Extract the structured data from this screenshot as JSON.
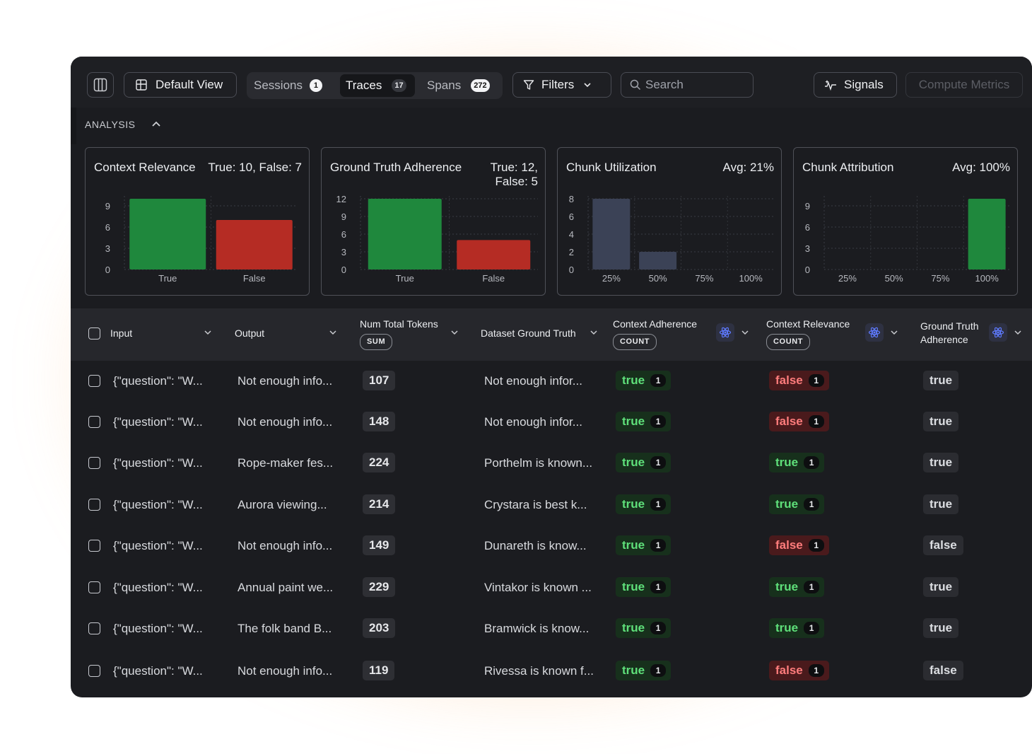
{
  "toolbar": {
    "default_view": "Default View",
    "tabs": [
      {
        "label": "Sessions",
        "count": "1"
      },
      {
        "label": "Traces",
        "count": "17"
      },
      {
        "label": "Spans",
        "count": "272"
      }
    ],
    "filters": "Filters",
    "search_placeholder": "Search",
    "signals": "Signals",
    "compute_metrics": "Compute Metrics"
  },
  "analysis": {
    "title": "ANALYSIS",
    "cards": [
      {
        "title": "Context Relevance",
        "stat_line1": "True: 10, False: 7",
        "stat_line2": "",
        "chart_data": {
          "type": "bar",
          "categories": [
            "True",
            "False"
          ],
          "values": [
            10,
            7
          ],
          "yticks": [
            0,
            3,
            6,
            9
          ],
          "ylim": [
            0,
            10
          ],
          "colors": [
            "#1f883d",
            "#b52c24"
          ]
        }
      },
      {
        "title": "Ground Truth Adherence",
        "stat_line1": "True: 12,",
        "stat_line2": "False: 5",
        "chart_data": {
          "type": "bar",
          "categories": [
            "True",
            "False"
          ],
          "values": [
            12,
            5
          ],
          "yticks": [
            0,
            3,
            6,
            9,
            12
          ],
          "ylim": [
            0,
            12
          ],
          "colors": [
            "#1f883d",
            "#b52c24"
          ]
        }
      },
      {
        "title": "Chunk Utilization",
        "stat_line1": "Avg: 21%",
        "stat_line2": "",
        "chart_data": {
          "type": "bar",
          "categories": [
            "25%",
            "50%",
            "75%",
            "100%"
          ],
          "values": [
            8,
            2,
            0,
            0
          ],
          "yticks": [
            0,
            2,
            4,
            6,
            8
          ],
          "ylim": [
            0,
            8
          ],
          "colors": [
            "#3b4256",
            "#3b4256",
            "#3b4256",
            "#3b4256"
          ]
        }
      },
      {
        "title": "Chunk Attribution",
        "stat_line1": "Avg: 100%",
        "stat_line2": "",
        "chart_data": {
          "type": "bar",
          "categories": [
            "25%",
            "50%",
            "75%",
            "100%"
          ],
          "values": [
            0,
            0,
            0,
            10
          ],
          "yticks": [
            0,
            3,
            6,
            9
          ],
          "ylim": [
            0,
            10
          ],
          "colors": [
            "#1f883d",
            "#1f883d",
            "#1f883d",
            "#1f883d"
          ]
        }
      }
    ]
  },
  "table": {
    "headers": {
      "input": "Input",
      "output": "Output",
      "tokens": "Num Total Tokens",
      "tokens_tag": "SUM",
      "dataset_gt": "Dataset Ground Truth",
      "ctx_adherence": "Context Adherence",
      "ctx_adherence_tag": "COUNT",
      "ctx_relevance": "Context Relevance",
      "ctx_relevance_tag": "COUNT",
      "gt_adherence_1": "Ground Truth",
      "gt_adherence_2": "Adherence"
    },
    "rows": [
      {
        "input": "{\"question\": \"W...",
        "output": "Not enough info...",
        "tokens": "107",
        "dataset_gt": "Not enough infor...",
        "ctx_adherence": "true",
        "ctx_adherence_count": "1",
        "ctx_relevance": "false",
        "ctx_relevance_count": "1",
        "gt_adherence": "true"
      },
      {
        "input": "{\"question\": \"W...",
        "output": "Not enough info...",
        "tokens": "148",
        "dataset_gt": "Not enough infor...",
        "ctx_adherence": "true",
        "ctx_adherence_count": "1",
        "ctx_relevance": "false",
        "ctx_relevance_count": "1",
        "gt_adherence": "true"
      },
      {
        "input": "{\"question\": \"W...",
        "output": "Rope-maker fes...",
        "tokens": "224",
        "dataset_gt": "Porthelm is known...",
        "ctx_adherence": "true",
        "ctx_adherence_count": "1",
        "ctx_relevance": "true",
        "ctx_relevance_count": "1",
        "gt_adherence": "true"
      },
      {
        "input": "{\"question\": \"W...",
        "output": "Aurora viewing...",
        "tokens": "214",
        "dataset_gt": "Crystara is best k...",
        "ctx_adherence": "true",
        "ctx_adherence_count": "1",
        "ctx_relevance": "true",
        "ctx_relevance_count": "1",
        "gt_adherence": "true"
      },
      {
        "input": "{\"question\": \"W...",
        "output": "Not enough info...",
        "tokens": "149",
        "dataset_gt": "Dunareth is know...",
        "ctx_adherence": "true",
        "ctx_adherence_count": "1",
        "ctx_relevance": "false",
        "ctx_relevance_count": "1",
        "gt_adherence": "false"
      },
      {
        "input": "{\"question\": \"W...",
        "output": "Annual paint we...",
        "tokens": "229",
        "dataset_gt": "Vintakor is known ...",
        "ctx_adherence": "true",
        "ctx_adherence_count": "1",
        "ctx_relevance": "true",
        "ctx_relevance_count": "1",
        "gt_adherence": "true"
      },
      {
        "input": "{\"question\": \"W...",
        "output": "The folk band B...",
        "tokens": "203",
        "dataset_gt": "Bramwick is know...",
        "ctx_adherence": "true",
        "ctx_adherence_count": "1",
        "ctx_relevance": "true",
        "ctx_relevance_count": "1",
        "gt_adherence": "true"
      },
      {
        "input": "{\"question\": \"W...",
        "output": "Not enough info...",
        "tokens": "119",
        "dataset_gt": "Rivessa is known f...",
        "ctx_adherence": "true",
        "ctx_adherence_count": "1",
        "ctx_relevance": "false",
        "ctx_relevance_count": "1",
        "gt_adherence": "false"
      }
    ]
  }
}
